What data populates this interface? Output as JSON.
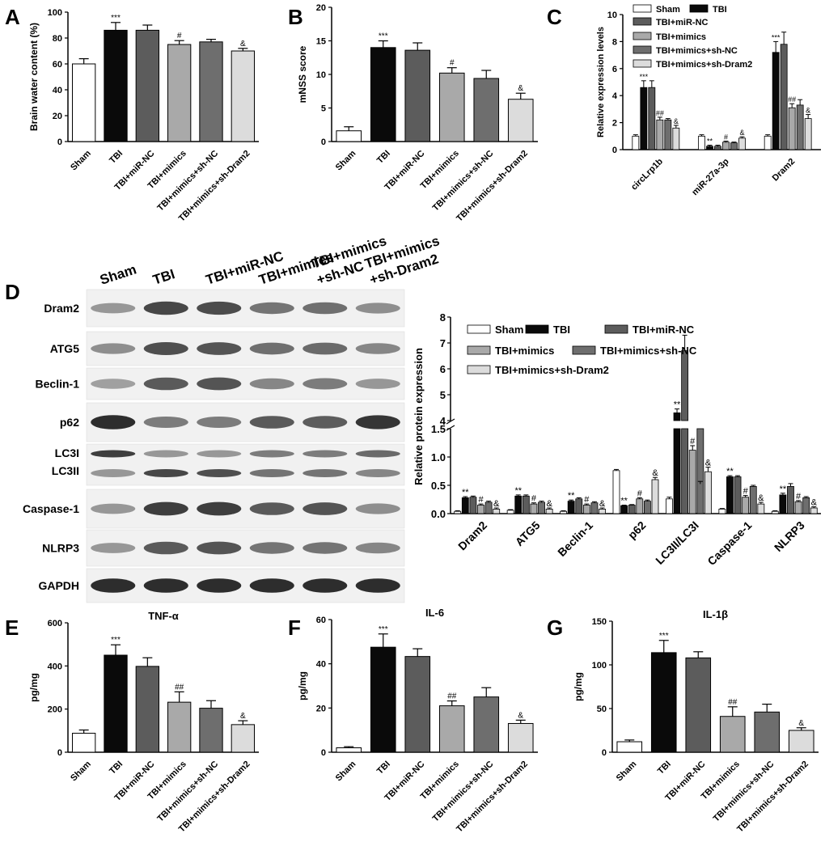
{
  "panels": [
    "A",
    "B",
    "C",
    "D",
    "E",
    "F",
    "G"
  ],
  "group_labels": [
    "Sham",
    "TBI",
    "TBI+miR-NC",
    "TBI+mimics",
    "TBI+mimics+sh-NC",
    "TBI+mimics+sh-Dram2"
  ],
  "colors": {
    "sham": "#ffffff",
    "tbi": "#0a0a0a",
    "mirnc": "#5c5c5c",
    "mimics": "#a9a9a9",
    "shnc": "#6e6e6e",
    "shdram2": "#dcdcdc",
    "blot_bg": "#f1f1f1"
  },
  "blot": {
    "lanes": [
      "Sham",
      "TBI",
      "TBI+miR-NC",
      "TBI+mimics",
      "TBI+mimics\n+sh-NC",
      "TBI+mimics\n+sh-Dram2"
    ],
    "rows": [
      {
        "label": "Dram2",
        "intensity": [
          0.35,
          0.8,
          0.78,
          0.55,
          0.57,
          0.4
        ]
      },
      {
        "label": "ATG5",
        "intensity": [
          0.4,
          0.75,
          0.72,
          0.58,
          0.6,
          0.45
        ]
      },
      {
        "label": "Beclin-1",
        "intensity": [
          0.3,
          0.7,
          0.72,
          0.45,
          0.5,
          0.35
        ]
      },
      {
        "label": "p62",
        "intensity": [
          0.95,
          0.5,
          0.5,
          0.7,
          0.68,
          0.9
        ]
      },
      {
        "label": "LC3I",
        "sublabel": "LC3II",
        "intensity": [
          0.85,
          0.35,
          0.35,
          0.5,
          0.5,
          0.6
        ],
        "intensity2": [
          0.35,
          0.8,
          0.75,
          0.55,
          0.55,
          0.45
        ]
      },
      {
        "label": "Caspase-1",
        "intensity": [
          0.35,
          0.85,
          0.85,
          0.7,
          0.72,
          0.4
        ]
      },
      {
        "label": "NLRP3",
        "intensity": [
          0.35,
          0.7,
          0.72,
          0.55,
          0.55,
          0.45
        ]
      },
      {
        "label": "GAPDH",
        "intensity": [
          0.95,
          0.95,
          0.95,
          0.95,
          0.95,
          0.95
        ]
      }
    ]
  },
  "chart_data": [
    {
      "panel": "A",
      "type": "bar",
      "categories": [
        "Sham",
        "TBI",
        "TBI+miR-NC",
        "TBI+mimics",
        "TBI+mimics+sh-NC",
        "TBI+mimics+sh-Dram2"
      ],
      "values": [
        60,
        86,
        86,
        75,
        77,
        70
      ],
      "errors": [
        4,
        6,
        4,
        3,
        2,
        2
      ],
      "annotations": [
        "",
        "***",
        "",
        "#",
        "",
        "&"
      ],
      "ylabel": "Brain water content (%)",
      "ylim": [
        0,
        100
      ],
      "yticks": [
        0,
        20,
        40,
        60,
        80,
        100
      ]
    },
    {
      "panel": "B",
      "type": "bar",
      "categories": [
        "Sham",
        "TBI",
        "TBI+miR-NC",
        "TBI+mimics",
        "TBI+mimics+sh-NC",
        "TBI+mimics+sh-Dram2"
      ],
      "values": [
        1.6,
        14,
        13.6,
        10.2,
        9.4,
        6.3
      ],
      "errors": [
        0.6,
        1.0,
        1.1,
        0.8,
        1.2,
        0.9
      ],
      "annotations": [
        "",
        "***",
        "",
        "#",
        "",
        "&"
      ],
      "ylabel": "mNSS score",
      "ylim": [
        0,
        20
      ],
      "yticks": [
        0,
        5,
        10,
        15,
        20
      ]
    },
    {
      "panel": "C",
      "type": "bar",
      "categories": [
        "circLrp1b",
        "miR-27a-3p",
        "Dram2"
      ],
      "series": [
        {
          "name": "Sham",
          "values": [
            1.0,
            1.0,
            1.0
          ],
          "errors": [
            0.1,
            0.1,
            0.1
          ],
          "annotations": [
            "",
            "",
            ""
          ]
        },
        {
          "name": "TBI",
          "values": [
            4.6,
            0.25,
            7.2
          ],
          "errors": [
            0.5,
            0.08,
            0.8
          ],
          "annotations": [
            "***",
            "**",
            "***"
          ]
        },
        {
          "name": "TBI+miR-NC",
          "values": [
            4.6,
            0.25,
            7.8
          ],
          "errors": [
            0.5,
            0.08,
            0.9
          ],
          "annotations": [
            "",
            "",
            ""
          ]
        },
        {
          "name": "TBI+mimics",
          "values": [
            2.2,
            0.55,
            3.1
          ],
          "errors": [
            0.2,
            0.08,
            0.3
          ],
          "annotations": [
            "##",
            "#",
            "##"
          ]
        },
        {
          "name": "TBI+mimics+sh-NC",
          "values": [
            2.2,
            0.5,
            3.3
          ],
          "errors": [
            0.1,
            0.06,
            0.4
          ],
          "annotations": [
            "",
            "",
            ""
          ]
        },
        {
          "name": "TBI+mimics+sh-Dram2",
          "values": [
            1.6,
            0.85,
            2.3
          ],
          "errors": [
            0.2,
            0.1,
            0.3
          ],
          "annotations": [
            "&",
            "&",
            "&"
          ]
        }
      ],
      "ylabel": "Relative expression levels",
      "ylim": [
        0,
        10
      ],
      "yticks": [
        0,
        2,
        4,
        6,
        8,
        10
      ]
    },
    {
      "panel": "D",
      "type": "bar",
      "categories": [
        "Dram2",
        "ATG5",
        "Beclin-1",
        "p62",
        "LC3II/LC3I",
        "Caspase-1",
        "NLRP3"
      ],
      "series": [
        {
          "name": "Sham",
          "values": [
            0.04,
            0.06,
            0.04,
            0.76,
            0.26,
            0.08,
            0.04
          ],
          "errors": [
            0.01,
            0.01,
            0.01,
            0.02,
            0.03,
            0.01,
            0.01
          ],
          "annotations": [
            "",
            "",
            "",
            "",
            "",
            "",
            ""
          ]
        },
        {
          "name": "TBI",
          "values": [
            0.28,
            0.31,
            0.22,
            0.14,
            4.3,
            0.65,
            0.33
          ],
          "errors": [
            0.02,
            0.02,
            0.02,
            0.01,
            0.15,
            0.02,
            0.03
          ],
          "annotations": [
            "**",
            "**",
            "**",
            "**",
            "**",
            "**",
            "**"
          ]
        },
        {
          "name": "TBI+miR-NC",
          "values": [
            0.29,
            0.31,
            0.26,
            0.15,
            6.7,
            0.65,
            0.48
          ],
          "errors": [
            0.02,
            0.02,
            0.02,
            0.01,
            0.6,
            0.02,
            0.05
          ],
          "annotations": [
            "",
            "",
            "",
            "",
            "",
            "",
            ""
          ]
        },
        {
          "name": "TBI+mimics",
          "values": [
            0.15,
            0.17,
            0.15,
            0.26,
            1.12,
            0.29,
            0.21
          ],
          "errors": [
            0.02,
            0.02,
            0.02,
            0.02,
            0.08,
            0.03,
            0.02
          ],
          "annotations": [
            "#",
            "#",
            "#",
            "#",
            "#",
            "#",
            "#"
          ]
        },
        {
          "name": "TBI+mimics+sh-NC",
          "values": [
            0.2,
            0.2,
            0.19,
            0.22,
            1.55,
            0.48,
            0.28
          ],
          "errors": [
            0.02,
            0.02,
            0.02,
            0.02,
            0.1,
            0.02,
            0.02
          ],
          "annotations": [
            "",
            "",
            "",
            "",
            "",
            "",
            ""
          ]
        },
        {
          "name": "TBI+mimics+sh-Dram2",
          "values": [
            0.08,
            0.08,
            0.08,
            0.6,
            0.74,
            0.17,
            0.1
          ],
          "errors": [
            0.02,
            0.02,
            0.02,
            0.04,
            0.08,
            0.03,
            0.02
          ],
          "annotations": [
            "&",
            "&",
            "&",
            "&",
            "&",
            "&",
            "&"
          ]
        }
      ],
      "ylabel": "Relative protein expression",
      "axis_break": {
        "lower": [
          0,
          1.5
        ],
        "upper": [
          4,
          8
        ]
      },
      "yticks_lower": [
        "0.0",
        "0.5",
        "1.0",
        "1.5"
      ],
      "yticks_upper": [
        "4",
        "5",
        "6",
        "7",
        "8"
      ]
    },
    {
      "panel": "E",
      "type": "bar",
      "title": "TNF-α",
      "categories": [
        "Sham",
        "TBI",
        "TBI+miR-NC",
        "TBI+mimics",
        "TBI+mimics+sh-NC",
        "TBI+mimics+sh-Dram2"
      ],
      "values": [
        88,
        450,
        398,
        232,
        204,
        128
      ],
      "errors": [
        15,
        48,
        40,
        48,
        35,
        18
      ],
      "annotations": [
        "",
        "***",
        "",
        "##",
        "",
        "&"
      ],
      "ylabel": "pg/mg",
      "ylim": [
        0,
        600
      ],
      "yticks": [
        0,
        200,
        400,
        600
      ]
    },
    {
      "panel": "F",
      "type": "bar",
      "title": "IL-6",
      "categories": [
        "Sham",
        "TBI",
        "TBI+miR-NC",
        "TBI+mimics",
        "TBI+mimics+sh-NC",
        "TBI+mimics+sh-Dram2"
      ],
      "values": [
        2,
        47.5,
        43.3,
        21,
        25,
        13
      ],
      "errors": [
        0.5,
        6,
        3.5,
        2.2,
        4.2,
        1.5
      ],
      "annotations": [
        "",
        "***",
        "",
        "##",
        "",
        "&"
      ],
      "ylabel": "pg/mg",
      "ylim": [
        0,
        60
      ],
      "yticks": [
        0,
        20,
        40,
        60
      ]
    },
    {
      "panel": "G",
      "type": "bar",
      "title": "IL-1β",
      "categories": [
        "Sham",
        "TBI",
        "TBI+miR-NC",
        "TBI+mimics",
        "TBI+mimics+sh-NC",
        "TBI+mimics+sh-Dram2"
      ],
      "values": [
        12,
        114,
        108,
        41,
        46,
        25
      ],
      "errors": [
        2,
        14,
        7,
        11,
        9,
        3
      ],
      "annotations": [
        "",
        "***",
        "",
        "##",
        "",
        "&"
      ],
      "ylabel": "pg/mg",
      "ylim": [
        0,
        150
      ],
      "yticks": [
        0,
        50,
        100,
        150
      ]
    }
  ]
}
